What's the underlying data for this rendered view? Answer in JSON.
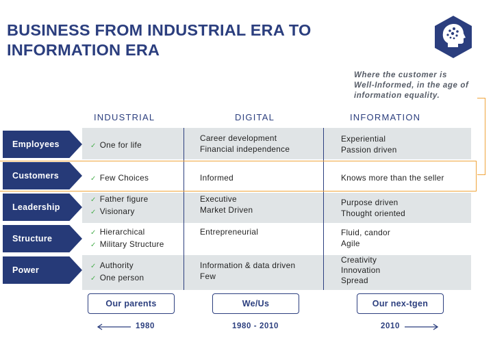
{
  "title": {
    "line1": "BUSINESS FROM INDUSTRIAL ERA TO",
    "line2": "INFORMATION ERA"
  },
  "logo": {
    "icon": "brain-head-icon",
    "color": "#2b3e7e"
  },
  "note": {
    "line1": "Where the customer is",
    "line2": "Well-Informed, in the age of",
    "line3": "information equality."
  },
  "columns": [
    "INDUSTRIAL",
    "DIGITAL",
    "INFORMATION"
  ],
  "rows": [
    {
      "label": "Employees",
      "industrial": [
        "One for life"
      ],
      "digital": [
        "Career development",
        "Financial independence"
      ],
      "information": [
        "Experiential",
        "Passion driven"
      ]
    },
    {
      "label": "Customers",
      "industrial": [
        "Few Choices"
      ],
      "digital": [
        "Informed"
      ],
      "information": [
        "Knows more than the seller"
      ]
    },
    {
      "label": "Leadership",
      "industrial": [
        "Father figure",
        "Visionary"
      ],
      "digital": [
        "Executive",
        "Market Driven"
      ],
      "information": [
        "Purpose driven",
        "Thought oriented"
      ]
    },
    {
      "label": "Structure",
      "industrial": [
        "Hierarchical",
        "Military Structure"
      ],
      "digital": [
        "Entrepreneurial"
      ],
      "information": [
        "Fluid, candor",
        "Agile"
      ]
    },
    {
      "label": "Power",
      "industrial": [
        "Authority",
        "One person"
      ],
      "digital": [
        "Information & data driven",
        "Few"
      ],
      "information": [
        "Creativity",
        "Innovation",
        "Spread"
      ]
    }
  ],
  "check_glyph": "✓",
  "generations": [
    "Our parents",
    "We/Us",
    "Our nex-tgen"
  ],
  "years": [
    "1980",
    "1980 - 2010",
    "2010"
  ],
  "colors": {
    "navy": "#2b3e7e",
    "band": "#e0e4e6",
    "accent_orange": "#f0a43a",
    "check_green": "#4caf50"
  }
}
